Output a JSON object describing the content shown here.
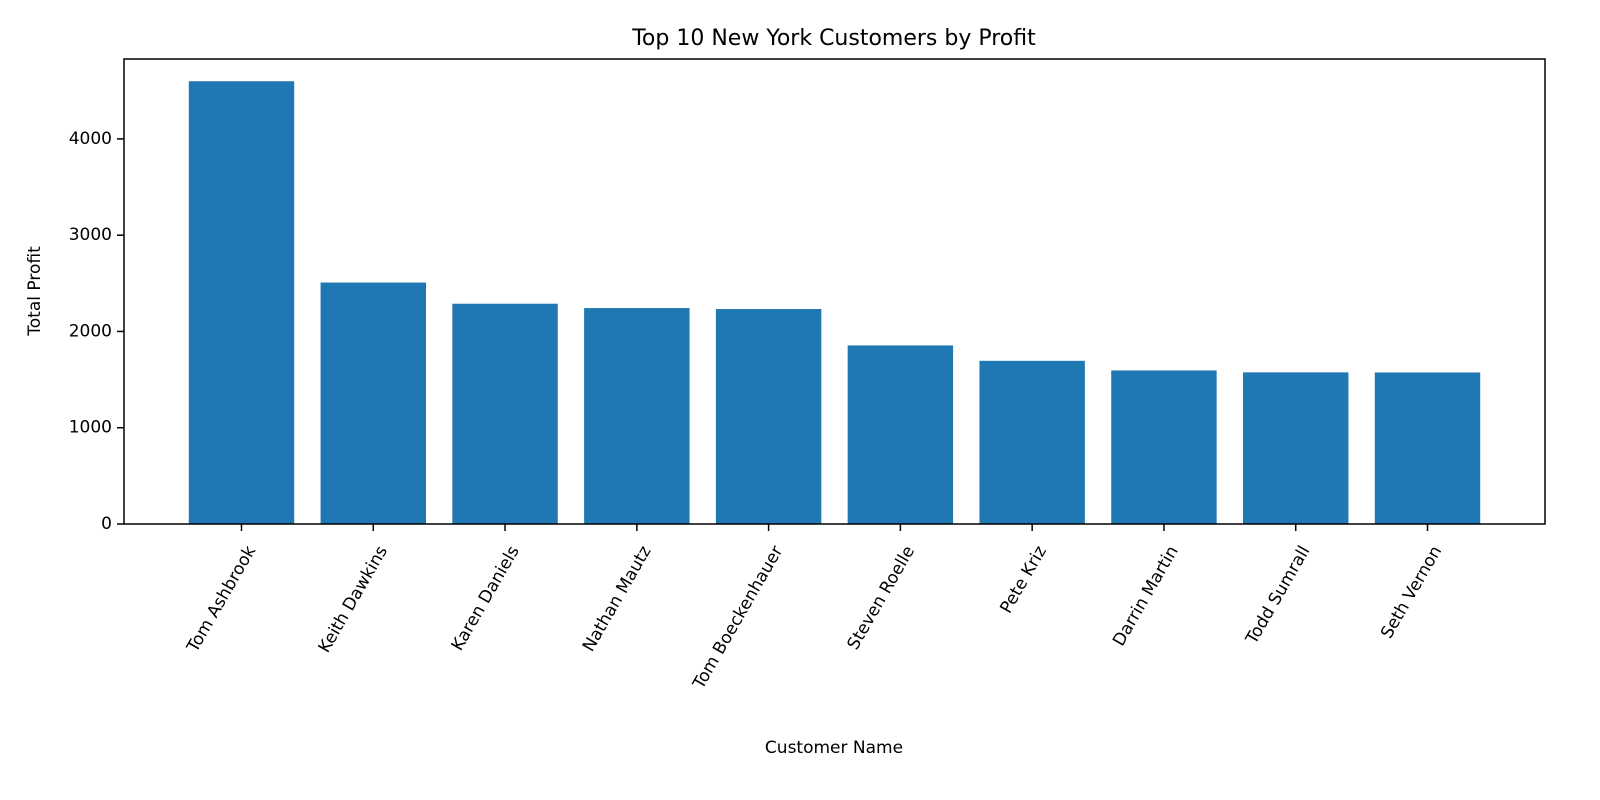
{
  "chart_data": {
    "type": "bar",
    "title": "Top 10 New York Customers by Profit",
    "xlabel": "Customer Name",
    "ylabel": "Total Profit",
    "categories": [
      "Tom Ashbrook",
      "Keith Dawkins",
      "Karen Daniels",
      "Nathan Mautz",
      "Tom Boeckenhauer",
      "Steven Roelle",
      "Pete Kriz",
      "Darrin Martin",
      "Todd Sumrall",
      "Seth Vernon"
    ],
    "values": [
      4599,
      2508,
      2288,
      2243,
      2233,
      1855,
      1695,
      1595,
      1575,
      1574
    ],
    "ylim": [
      0,
      4830
    ],
    "yticks": [
      0,
      1000,
      2000,
      3000,
      4000
    ],
    "ytick_labels": [
      "0",
      "1000",
      "2000",
      "3000",
      "4000"
    ],
    "grid": false,
    "bar_color": "#1f77b4"
  }
}
